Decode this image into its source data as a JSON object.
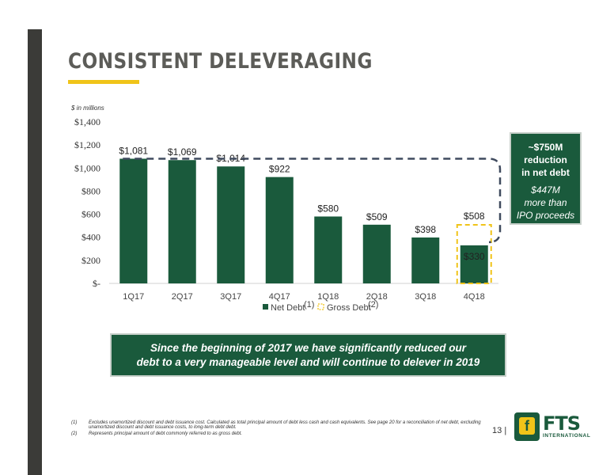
{
  "page": {
    "title": "CONSISTENT DELEVERAGING",
    "units": "$ in millions",
    "page_number": "13",
    "page_sep": "|"
  },
  "callout": {
    "line1": "~$750M",
    "line2": "reduction",
    "line3": "in net debt",
    "line4": "$447M",
    "line5": "more than",
    "line6": "IPO proceeds"
  },
  "banner": {
    "line1": "Since the beginning of 2017 we have significantly reduced our",
    "line2": "debt to a very manageable level and will continue to delever in 2019"
  },
  "footnotes": [
    {
      "num": "(1)",
      "text": "Excludes unamortized discount and debt issuance cost. Calculated as total principal amount of debt less cash and cash equivalents. See page 20 for a reconciliation of net debt, excluding unamortized discount and debt issuance costs, to long-term debt debt."
    },
    {
      "num": "(2)",
      "text": "Represents principal amount of debt commonly referred to as gross debt."
    }
  ],
  "logo": {
    "mark": "f",
    "name": "FTS",
    "sub": "INTERNATIONAL"
  },
  "colors": {
    "bar": "#1a5a3c",
    "gross_outline": "#f0c419",
    "dashed_line": "#3f4a5e",
    "accent": "#f0c419"
  },
  "chart_data": {
    "type": "bar",
    "categories": [
      "1Q17",
      "2Q17",
      "3Q17",
      "4Q17",
      "1Q18",
      "2Q18",
      "3Q18",
      "4Q18"
    ],
    "series": [
      {
        "name": "Net Debt",
        "values": [
          1081,
          1069,
          1014,
          922,
          580,
          509,
          398,
          330
        ],
        "labels": [
          "$1,081",
          "$1,069",
          "$1,014",
          "$922",
          "$580",
          "$509",
          "$398",
          "$330"
        ]
      },
      {
        "name": "Gross Debt",
        "values": [
          null,
          null,
          null,
          null,
          null,
          null,
          null,
          508
        ],
        "labels": [
          "",
          "",
          "",
          "",
          "",
          "",
          "",
          "$508"
        ]
      }
    ],
    "legend": [
      {
        "name": "Net Debt",
        "sup": "(1)"
      },
      {
        "name": "Gross Debt",
        "sup": "(2)"
      }
    ],
    "legend_position": "bottom",
    "y_ticks": [
      0,
      200,
      400,
      600,
      800,
      1000,
      1200,
      1400
    ],
    "y_tick_labels": [
      "$-",
      "$200",
      "$400",
      "$600",
      "$800",
      "$1,000",
      "$1,200",
      "$1,400"
    ],
    "ylim": [
      0,
      1400
    ],
    "reference_line": {
      "value": 1081,
      "style": "dashed"
    },
    "grid": false,
    "xlabel": "",
    "ylabel": ""
  }
}
